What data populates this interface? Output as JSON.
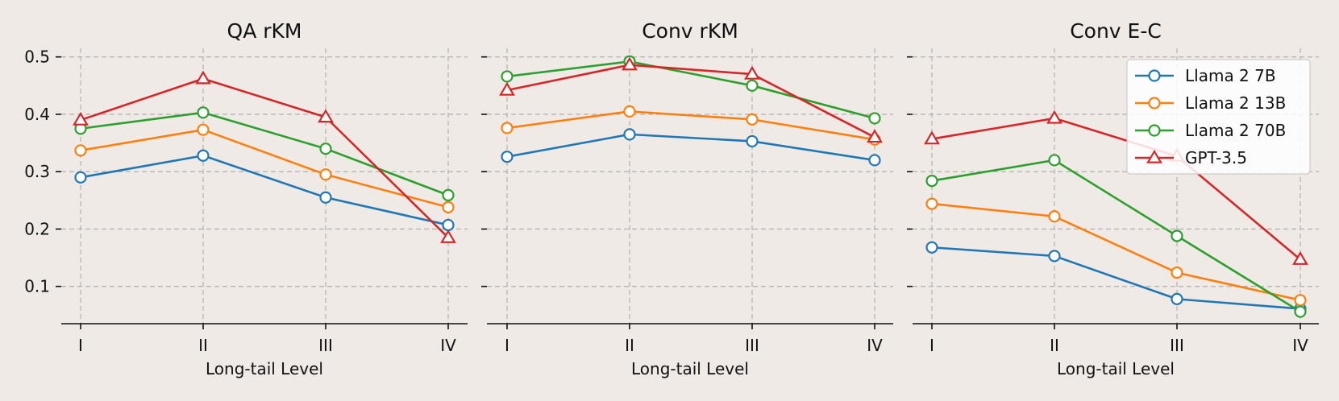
{
  "chart_data": [
    {
      "type": "line",
      "title": "QA rKM",
      "xlabel": "Long-tail Level",
      "categories": [
        "I",
        "II",
        "III",
        "IV"
      ],
      "ylim": [
        0.035,
        0.515
      ],
      "yticks": [
        "0.1",
        "0.2",
        "0.3",
        "0.4",
        "0.5"
      ],
      "series": [
        {
          "name": "Llama 2 7B",
          "values": [
            0.29,
            0.328,
            0.255,
            0.207
          ]
        },
        {
          "name": "Llama 2 13B",
          "values": [
            0.337,
            0.373,
            0.295,
            0.238
          ]
        },
        {
          "name": "Llama 2 70B",
          "values": [
            0.375,
            0.403,
            0.34,
            0.259
          ]
        },
        {
          "name": "GPT-3.5",
          "values": [
            0.39,
            0.462,
            0.395,
            0.185
          ]
        }
      ]
    },
    {
      "type": "line",
      "title": "Conv rKM",
      "xlabel": "Long-tail Level",
      "categories": [
        "I",
        "II",
        "III",
        "IV"
      ],
      "ylim": [
        0.035,
        0.515
      ],
      "series": [
        {
          "name": "Llama 2 7B",
          "values": [
            0.326,
            0.365,
            0.353,
            0.32
          ]
        },
        {
          "name": "Llama 2 13B",
          "values": [
            0.376,
            0.405,
            0.391,
            0.356
          ]
        },
        {
          "name": "Llama 2 70B",
          "values": [
            0.466,
            0.492,
            0.45,
            0.393
          ]
        },
        {
          "name": "GPT-3.5",
          "values": [
            0.442,
            0.486,
            0.47,
            0.36
          ]
        }
      ]
    },
    {
      "type": "line",
      "title": "Conv E-C",
      "xlabel": "Long-tail Level",
      "categories": [
        "I",
        "II",
        "III",
        "IV"
      ],
      "ylim": [
        0.035,
        0.515
      ],
      "legend_position": "top-right",
      "series": [
        {
          "name": "Llama 2 7B",
          "values": [
            0.168,
            0.153,
            0.078,
            0.061
          ]
        },
        {
          "name": "Llama 2 13B",
          "values": [
            0.244,
            0.222,
            0.124,
            0.076
          ]
        },
        {
          "name": "Llama 2 70B",
          "values": [
            0.284,
            0.32,
            0.188,
            0.056
          ]
        },
        {
          "name": "GPT-3.5",
          "values": [
            0.357,
            0.393,
            0.327,
            0.147
          ]
        }
      ]
    }
  ],
  "series_style": [
    {
      "name": "Llama 2 7B",
      "color": "#1f77b4",
      "marker": "circle"
    },
    {
      "name": "Llama 2 13B",
      "color": "#ff7f0e",
      "marker": "circle"
    },
    {
      "name": "Llama 2 70B",
      "color": "#2ca02c",
      "marker": "circle"
    },
    {
      "name": "GPT-3.5",
      "color": "#d62728",
      "marker": "triangle"
    }
  ],
  "background": "#efeae6",
  "grid": true
}
